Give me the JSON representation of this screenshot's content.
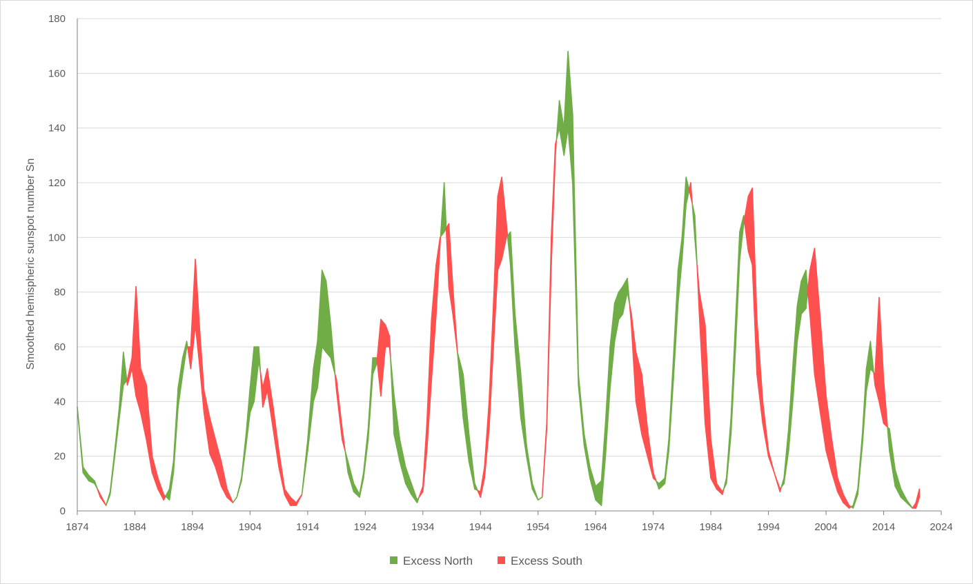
{
  "chart_data": {
    "type": "area",
    "title": "",
    "xlabel": "",
    "ylabel": "Smoothed hemispheric sunspot number Sn",
    "xlim": [
      1874,
      2024
    ],
    "ylim": [
      0,
      180
    ],
    "x_ticks": [
      "1874",
      "1884",
      "1894",
      "1904",
      "1914",
      "1924",
      "1934",
      "1944",
      "1954",
      "1964",
      "1974",
      "1984",
      "1994",
      "2004",
      "2014",
      "2024"
    ],
    "y_ticks": [
      "0",
      "20",
      "40",
      "60",
      "80",
      "100",
      "120",
      "140",
      "160",
      "180"
    ],
    "grid": "horizontal",
    "legend_position": "bottom",
    "colors": {
      "north": "#70ad47",
      "south": "#ff5050",
      "grid": "#d9d9d9",
      "axis": "#7f7f7f"
    },
    "series": [
      {
        "name": "Excess North",
        "color": "#70ad47"
      },
      {
        "name": "Excess South",
        "color": "#ff5050"
      }
    ],
    "x": [
      1874.0,
      1875.0,
      1876.0,
      1877.0,
      1878.0,
      1879.0,
      1879.7,
      1880.5,
      1881.3,
      1882.0,
      1882.7,
      1883.5,
      1884.2,
      1885.0,
      1886.0,
      1887.0,
      1888.0,
      1889.0,
      1890.0,
      1890.7,
      1891.5,
      1892.3,
      1893.0,
      1893.7,
      1894.5,
      1895.2,
      1896.0,
      1897.0,
      1898.0,
      1899.0,
      1900.0,
      1901.0,
      1901.7,
      1902.5,
      1903.3,
      1904.0,
      1904.7,
      1905.5,
      1906.2,
      1907.0,
      1908.0,
      1909.0,
      1910.0,
      1911.0,
      1912.0,
      1913.0,
      1914.0,
      1915.0,
      1915.7,
      1916.5,
      1917.2,
      1918.0,
      1919.0,
      1920.0,
      1921.0,
      1922.0,
      1923.0,
      1923.7,
      1924.5,
      1925.3,
      1926.0,
      1926.7,
      1927.5,
      1928.2,
      1929.0,
      1930.0,
      1931.0,
      1932.0,
      1933.0,
      1934.0,
      1934.7,
      1935.5,
      1936.3,
      1937.0,
      1937.7,
      1938.5,
      1939.2,
      1940.0,
      1941.0,
      1942.0,
      1943.0,
      1944.0,
      1944.7,
      1945.5,
      1946.3,
      1947.0,
      1947.7,
      1948.5,
      1949.2,
      1950.0,
      1951.0,
      1952.0,
      1953.0,
      1954.0,
      1954.7,
      1955.5,
      1956.3,
      1957.0,
      1957.7,
      1958.5,
      1959.2,
      1960.0,
      1961.0,
      1962.0,
      1963.0,
      1964.0,
      1965.0,
      1965.7,
      1966.5,
      1967.3,
      1968.0,
      1968.7,
      1969.5,
      1970.2,
      1971.0,
      1972.0,
      1973.0,
      1974.0,
      1975.0,
      1976.0,
      1976.7,
      1977.5,
      1978.3,
      1979.0,
      1979.7,
      1980.5,
      1981.2,
      1982.0,
      1983.0,
      1984.0,
      1985.0,
      1986.0,
      1986.7,
      1987.5,
      1988.3,
      1989.0,
      1989.7,
      1990.5,
      1991.2,
      1992.0,
      1993.0,
      1994.0,
      1995.0,
      1996.0,
      1996.7,
      1997.5,
      1998.3,
      1999.0,
      1999.7,
      2000.5,
      2001.2,
      2002.0,
      2003.0,
      2004.0,
      2005.0,
      2006.0,
      2007.0,
      2008.0,
      2008.7,
      2009.5,
      2010.3,
      2011.0,
      2011.7,
      2012.5,
      2013.2,
      2014.0,
      2015.0,
      2016.0,
      2017.0,
      2018.0,
      2019.0,
      2019.6,
      2020.2,
      2020.8
    ],
    "north": [
      38,
      16,
      13,
      11,
      5,
      2,
      7,
      22,
      38,
      58,
      46,
      52,
      42,
      36,
      26,
      14,
      8,
      4,
      8,
      18,
      45,
      56,
      62,
      52,
      68,
      54,
      36,
      21,
      16,
      9,
      5,
      3,
      5,
      12,
      28,
      45,
      60,
      60,
      38,
      44,
      30,
      16,
      6,
      2,
      2,
      6,
      26,
      52,
      62,
      88,
      84,
      68,
      44,
      26,
      18,
      10,
      6,
      14,
      30,
      56,
      56,
      42,
      60,
      60,
      42,
      26,
      16,
      10,
      4,
      7,
      22,
      48,
      72,
      98,
      120,
      82,
      72,
      58,
      50,
      28,
      10,
      5,
      12,
      30,
      62,
      88,
      92,
      100,
      102,
      72,
      50,
      24,
      10,
      4,
      5,
      30,
      90,
      130,
      150,
      140,
      168,
      145,
      50,
      28,
      16,
      9,
      11,
      32,
      60,
      76,
      80,
      82,
      85,
      68,
      40,
      28,
      20,
      12,
      10,
      12,
      26,
      56,
      88,
      100,
      122,
      115,
      108,
      72,
      32,
      12,
      8,
      6,
      12,
      34,
      70,
      102,
      108,
      95,
      90,
      50,
      32,
      20,
      14,
      7,
      12,
      30,
      55,
      75,
      84,
      88,
      72,
      50,
      36,
      22,
      14,
      7,
      3,
      1,
      2,
      8,
      28,
      52,
      62,
      46,
      40,
      32,
      30,
      15,
      8,
      4,
      1,
      1,
      5
    ],
    "south": [
      38,
      14,
      11,
      10,
      6,
      2,
      6,
      20,
      34,
      46,
      48,
      56,
      82,
      52,
      46,
      20,
      12,
      6,
      4,
      14,
      38,
      50,
      60,
      60,
      92,
      68,
      44,
      34,
      26,
      18,
      8,
      3,
      5,
      11,
      24,
      36,
      40,
      55,
      45,
      52,
      38,
      22,
      8,
      5,
      3,
      6,
      22,
      40,
      45,
      60,
      58,
      56,
      48,
      30,
      14,
      7,
      5,
      12,
      26,
      50,
      54,
      70,
      68,
      64,
      28,
      18,
      10,
      6,
      3,
      9,
      32,
      70,
      90,
      100,
      102,
      105,
      82,
      58,
      34,
      18,
      8,
      7,
      16,
      40,
      78,
      115,
      122,
      105,
      90,
      60,
      34,
      20,
      8,
      4,
      5,
      32,
      100,
      134,
      140,
      130,
      140,
      120,
      46,
      24,
      12,
      4,
      2,
      20,
      45,
      62,
      70,
      72,
      80,
      72,
      58,
      50,
      30,
      14,
      8,
      10,
      22,
      48,
      76,
      92,
      112,
      120,
      100,
      80,
      68,
      26,
      10,
      7,
      10,
      28,
      60,
      92,
      105,
      115,
      118,
      70,
      40,
      22,
      14,
      8,
      10,
      22,
      42,
      62,
      72,
      74,
      88,
      96,
      70,
      42,
      26,
      12,
      6,
      2,
      1,
      6,
      24,
      44,
      52,
      50,
      78,
      48,
      22,
      9,
      5,
      3,
      1,
      3,
      8
    ]
  }
}
